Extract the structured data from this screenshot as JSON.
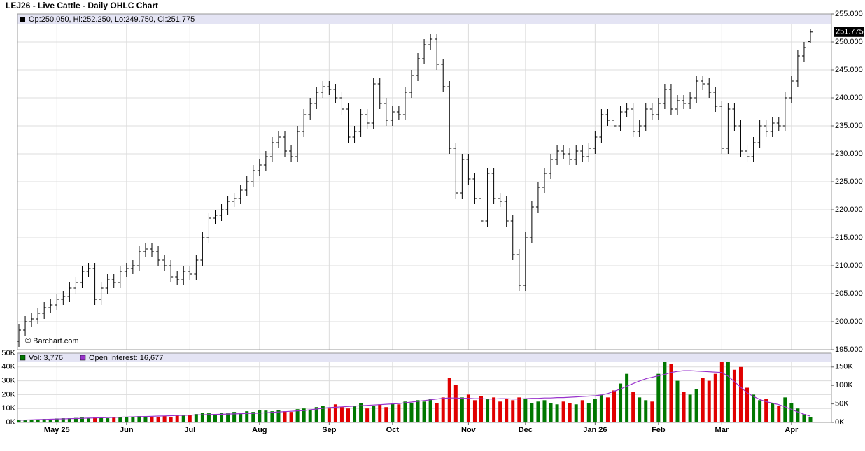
{
  "chart_data": {
    "type": "ohlc",
    "title": "LEJ26 - Live Cattle - Daily OHLC Chart",
    "header_label": "Op:250.050, Hi:252.250, Lo:249.750, Cl:251.775",
    "close_label": "251.775",
    "watermark": "© Barchart.com",
    "color": "#000000",
    "grid": true,
    "categories": [
      null,
      null,
      null,
      null,
      null,
      null,
      "May 25",
      null,
      null,
      null,
      null,
      null,
      null,
      null,
      null,
      null,
      null,
      "Jun",
      null,
      null,
      null,
      null,
      null,
      null,
      null,
      null,
      null,
      "Jul",
      null,
      null,
      null,
      null,
      null,
      null,
      null,
      null,
      null,
      null,
      "Aug",
      null,
      null,
      null,
      null,
      null,
      null,
      null,
      null,
      null,
      null,
      "Sep",
      null,
      null,
      null,
      null,
      null,
      null,
      null,
      null,
      null,
      "Oct",
      null,
      null,
      null,
      null,
      null,
      null,
      null,
      null,
      null,
      null,
      null,
      "Nov",
      null,
      null,
      null,
      null,
      null,
      null,
      null,
      null,
      "Dec",
      null,
      null,
      null,
      null,
      null,
      null,
      null,
      null,
      null,
      null,
      "Jan 26",
      null,
      null,
      null,
      null,
      null,
      null,
      null,
      null,
      null,
      "Feb",
      null,
      null,
      null,
      null,
      null,
      null,
      null,
      null,
      null,
      "Mar",
      null,
      null,
      null,
      null,
      null,
      null,
      null,
      null,
      null,
      null,
      "Apr",
      null,
      null,
      null
    ],
    "open": [
      196.5,
      198.5,
      200,
      200.5,
      201.5,
      202.5,
      203,
      204,
      204.5,
      206,
      207,
      209,
      209.5,
      204,
      206,
      207.5,
      207,
      209,
      209.5,
      210,
      212.5,
      213,
      212.5,
      211,
      210,
      208,
      207.5,
      209,
      208.5,
      211,
      215,
      218.5,
      219,
      220,
      221.5,
      222,
      223.5,
      225,
      227,
      228,
      229.5,
      232,
      233,
      230.5,
      229.5,
      234,
      237,
      239,
      241,
      242,
      241.5,
      240,
      238,
      233,
      234,
      237,
      235.5,
      242.5,
      239,
      236,
      237.5,
      237,
      241,
      244,
      247,
      249.5,
      250.5,
      246,
      242,
      231,
      223,
      229,
      225.5,
      222,
      218,
      226.5,
      222,
      221.5,
      218,
      212,
      206.5,
      215,
      220.5,
      224,
      226.5,
      229,
      230.5,
      230,
      229,
      230.5,
      229.5,
      231,
      233,
      237,
      236,
      235,
      237.5,
      238,
      234,
      235,
      238,
      237,
      239,
      241.5,
      238,
      239.5,
      239,
      240,
      243,
      242.5,
      241,
      238.5,
      231,
      238,
      235,
      230.5,
      229.5,
      232,
      235,
      234,
      235.5,
      235,
      240,
      243,
      247.5,
      250.05
    ],
    "high": [
      199.5,
      201,
      201.5,
      202.5,
      203.5,
      204,
      205,
      205.5,
      207,
      208,
      210,
      210.5,
      210.5,
      207,
      208.5,
      208.5,
      210,
      210.5,
      211,
      213.5,
      214,
      214,
      213.5,
      212,
      211,
      209,
      210,
      210,
      212,
      216,
      219.5,
      220,
      221,
      222.5,
      223,
      224.5,
      226,
      228,
      229,
      230.5,
      233,
      234,
      234,
      231.5,
      235,
      238,
      240,
      242,
      243,
      243,
      242.5,
      241,
      239,
      235,
      238,
      238,
      243.5,
      243.5,
      240,
      238.5,
      238.5,
      242,
      245,
      248,
      250.5,
      251.5,
      251.5,
      247,
      243,
      232,
      230,
      230,
      226.5,
      223,
      227.5,
      227.5,
      223,
      222.5,
      219,
      213,
      216,
      221.5,
      225,
      227.5,
      230,
      231.5,
      231.5,
      231,
      231.5,
      231.5,
      232,
      234,
      238,
      238,
      237,
      238.5,
      239,
      239,
      236,
      239,
      239,
      240,
      242.5,
      242.5,
      240.5,
      240.5,
      241,
      244,
      244,
      243.5,
      242,
      239.5,
      239,
      239,
      236,
      231.5,
      233,
      236,
      236,
      236.5,
      236.5,
      241,
      244,
      248.5,
      250,
      252.25
    ],
    "low": [
      195.5,
      197.5,
      199,
      199.5,
      200.5,
      201.5,
      202,
      203,
      203.5,
      205,
      206,
      208,
      203,
      203,
      205,
      206,
      206,
      208,
      208.5,
      209,
      211.5,
      211.5,
      210,
      209,
      207,
      206.5,
      206.5,
      207.5,
      207.5,
      210,
      214,
      217.5,
      218,
      219,
      220.5,
      221,
      222.5,
      224,
      226,
      227,
      228.5,
      231,
      229.5,
      228.5,
      228.5,
      233,
      236,
      238,
      240,
      240.5,
      239,
      237,
      232,
      232,
      233,
      234.5,
      234.5,
      238,
      235,
      235,
      236,
      236,
      240,
      243,
      246,
      248.5,
      245,
      241,
      230,
      222,
      222,
      224.5,
      221,
      217,
      217,
      221,
      220.5,
      217,
      211,
      205.5,
      205.5,
      214,
      219.5,
      223,
      225.5,
      228,
      229,
      228,
      228,
      228.5,
      228.5,
      230,
      232,
      235,
      234,
      234,
      236.5,
      233,
      233,
      234,
      236,
      236,
      238,
      237,
      237,
      238,
      238,
      239,
      241.5,
      240,
      237.5,
      230,
      230,
      234,
      229.5,
      228.5,
      228.5,
      231,
      233,
      233,
      234,
      234,
      239,
      242,
      246.5,
      249.75
    ],
    "close": [
      198.5,
      200,
      200.5,
      201.5,
      202.5,
      203,
      204,
      204.5,
      206,
      207,
      209,
      209.5,
      204,
      206,
      207.5,
      207,
      209,
      209.5,
      210,
      212.5,
      213,
      212.5,
      211,
      210,
      208,
      207.5,
      209,
      208.5,
      211,
      215,
      218.5,
      219,
      220,
      221.5,
      222,
      223.5,
      225,
      227,
      228,
      229.5,
      232,
      233,
      230.5,
      229.5,
      234,
      237,
      239,
      241,
      242,
      241.5,
      240,
      238,
      233,
      234,
      237,
      235.5,
      242.5,
      239,
      236,
      237.5,
      237,
      241,
      244,
      247,
      249.5,
      250.5,
      246,
      242,
      231,
      223,
      229,
      225.5,
      222,
      218,
      226.5,
      222,
      221.5,
      218,
      212,
      206.5,
      215,
      220.5,
      224,
      226.5,
      229,
      230.5,
      230,
      229,
      230.5,
      229.5,
      231,
      233,
      237,
      236,
      235,
      237.5,
      238,
      234,
      235,
      238,
      237,
      239,
      241.5,
      238,
      239.5,
      239,
      240,
      243,
      242.5,
      241,
      238.5,
      231,
      238,
      235,
      230.5,
      229.5,
      232,
      235,
      234,
      235.5,
      235,
      240,
      243,
      247.5,
      249,
      251.775
    ],
    "ylim": [
      195,
      255
    ],
    "yticks": [
      {
        "value": 195,
        "label": "195.000"
      },
      {
        "value": 200,
        "label": "200.000"
      },
      {
        "value": 205,
        "label": "205.000"
      },
      {
        "value": 210,
        "label": "210.000"
      },
      {
        "value": 215,
        "label": "215.000"
      },
      {
        "value": 220,
        "label": "220.000"
      },
      {
        "value": 225,
        "label": "225.000"
      },
      {
        "value": 230,
        "label": "230.000"
      },
      {
        "value": 235,
        "label": "235.000"
      },
      {
        "value": 240,
        "label": "240.000"
      },
      {
        "value": 245,
        "label": "245.000"
      },
      {
        "value": 250,
        "label": "250.000"
      },
      {
        "value": 255,
        "label": "255.000"
      }
    ],
    "volume": {
      "label": "Vol: 3,776",
      "up_color": "#007700",
      "down_color": "#e00000",
      "values": [
        1500,
        1800,
        2000,
        2200,
        2500,
        2500,
        2800,
        3000,
        3000,
        3200,
        3500,
        3000,
        3500,
        3200,
        3000,
        3500,
        4000,
        3800,
        4200,
        4500,
        4000,
        4200,
        3800,
        4500,
        4000,
        4800,
        5000,
        5500,
        6000,
        7000,
        6500,
        6000,
        7000,
        6500,
        7500,
        7000,
        8000,
        7500,
        9000,
        8500,
        8000,
        9000,
        8000,
        7500,
        9500,
        10000,
        9000,
        11000,
        12000,
        10000,
        13000,
        11000,
        10000,
        12000,
        14000,
        10000,
        12000,
        13000,
        11000,
        14000,
        13000,
        15000,
        14000,
        16000,
        15000,
        17000,
        14000,
        18000,
        32000,
        27000,
        18000,
        20000,
        16000,
        19000,
        17000,
        18000,
        15000,
        17000,
        16000,
        18000,
        17000,
        14000,
        15000,
        16000,
        14000,
        13000,
        15000,
        14000,
        13000,
        16000,
        14000,
        17000,
        20000,
        18000,
        23000,
        28000,
        35000,
        22000,
        18000,
        16000,
        15000,
        35000,
        45000,
        42000,
        30000,
        22000,
        20000,
        24000,
        32000,
        30000,
        35000,
        45000,
        44000,
        38000,
        40000,
        25000,
        20000,
        16000,
        17000,
        14000,
        12000,
        18000,
        14000,
        10000,
        6000,
        3776
      ],
      "ylim": [
        0,
        50000
      ],
      "yticks": [
        {
          "value": 0,
          "label": "0K"
        },
        {
          "value": 10000,
          "label": "10K"
        },
        {
          "value": 20000,
          "label": "20K"
        },
        {
          "value": 30000,
          "label": "30K"
        },
        {
          "value": 40000,
          "label": "40K"
        },
        {
          "value": 50000,
          "label": "50K"
        }
      ]
    },
    "open_interest": {
      "label": "Open Interest: 16,677",
      "axis": "y2",
      "color": "#9933cc",
      "values": [
        6000,
        6500,
        7000,
        7500,
        8000,
        8500,
        9000,
        9500,
        10000,
        10500,
        11000,
        11500,
        12000,
        12500,
        13000,
        13500,
        14000,
        14500,
        15000,
        15500,
        16000,
        16500,
        17000,
        17500,
        18000,
        18500,
        19000,
        19500,
        20000,
        20500,
        21000,
        21500,
        22000,
        22500,
        23000,
        23500,
        24000,
        24500,
        25000,
        26000,
        27000,
        28000,
        29000,
        30000,
        31000,
        32000,
        34000,
        36000,
        38000,
        40000,
        41000,
        42000,
        43000,
        44000,
        45000,
        46000,
        47000,
        48000,
        49000,
        50000,
        51000,
        53000,
        55000,
        57000,
        59000,
        61000,
        63000,
        65000,
        66000,
        66000,
        65000,
        65000,
        64000,
        64000,
        63000,
        63000,
        64000,
        64000,
        63000,
        63000,
        64000,
        65000,
        65000,
        66000,
        66000,
        67000,
        67000,
        68000,
        69000,
        70000,
        71000,
        72000,
        74000,
        78000,
        84000,
        90000,
        98000,
        105000,
        112000,
        118000,
        122000,
        126000,
        130000,
        135000,
        138000,
        140000,
        140000,
        139000,
        138000,
        137000,
        136000,
        135000,
        125000,
        110000,
        95000,
        80000,
        70000,
        62000,
        56000,
        52000,
        48000,
        42000,
        35000,
        28000,
        22000,
        16677
      ],
      "y2lim": [
        0,
        187500
      ],
      "y2ticks": [
        {
          "value": 0,
          "label": "0K"
        },
        {
          "value": 50000,
          "label": "50K"
        },
        {
          "value": 100000,
          "label": "100K"
        },
        {
          "value": 150000,
          "label": "150K"
        }
      ]
    }
  }
}
